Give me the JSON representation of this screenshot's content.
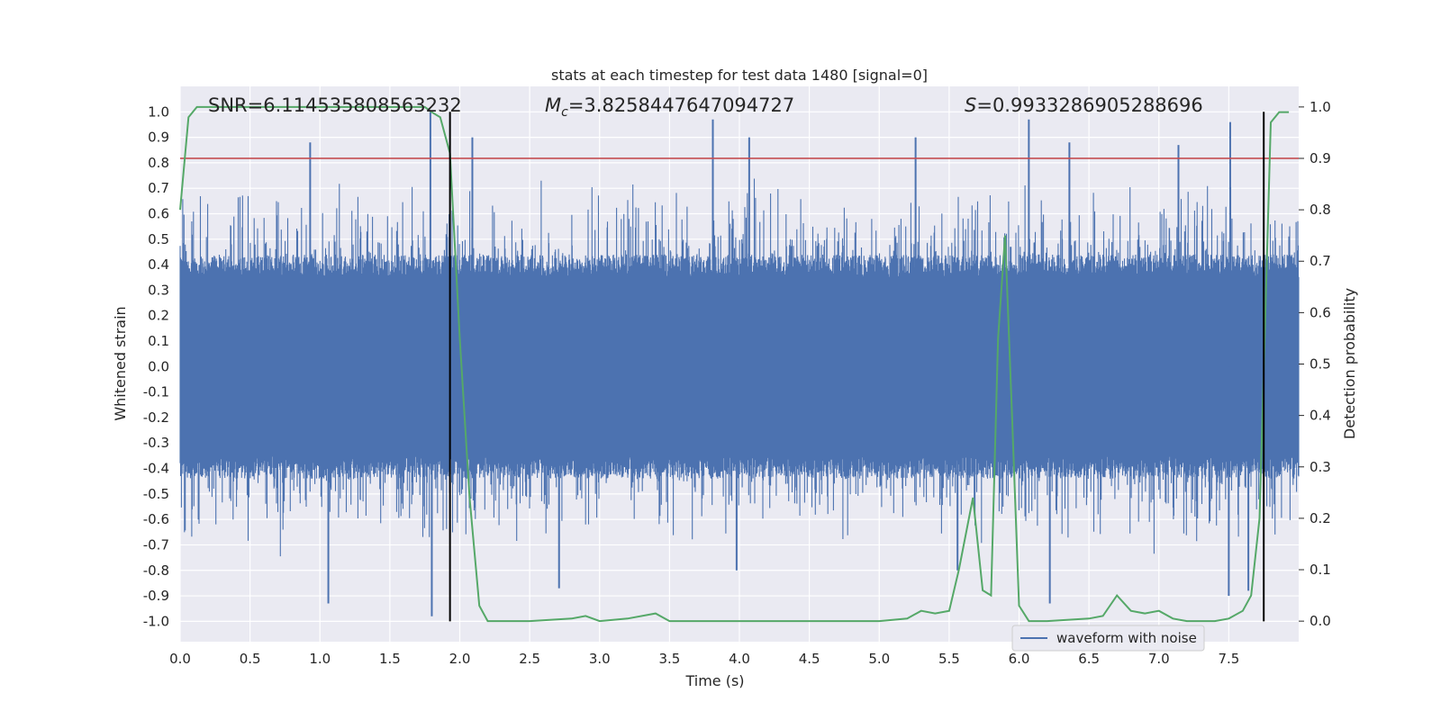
{
  "chart_data": {
    "type": "line",
    "title": "stats at each timestep for test data 1480 [signal=0]",
    "xlabel": "Time (s)",
    "ylabel_left": "Whitened strain",
    "ylabel_right": "Detection probability",
    "xlim": [
      0,
      8
    ],
    "ylim_left": [
      -1.08,
      1.1
    ],
    "ylim_right": [
      -0.04,
      1.04
    ],
    "x_ticks": [
      "0.0",
      "0.5",
      "1.0",
      "1.5",
      "2.0",
      "2.5",
      "3.0",
      "3.5",
      "4.0",
      "4.5",
      "5.0",
      "5.5",
      "6.0",
      "6.5",
      "7.0",
      "7.5"
    ],
    "y_ticks_left": [
      "-1.0",
      "-0.9",
      "-0.8",
      "-0.7",
      "-0.6",
      "-0.5",
      "-0.4",
      "-0.3",
      "-0.2",
      "-0.1",
      "0.0",
      "0.1",
      "0.2",
      "0.3",
      "0.4",
      "0.5",
      "0.6",
      "0.7",
      "0.8",
      "0.9",
      "1.0"
    ],
    "y_ticks_right": [
      "0.0",
      "0.1",
      "0.2",
      "0.3",
      "0.4",
      "0.5",
      "0.6",
      "0.7",
      "0.8",
      "0.9",
      "1.0"
    ],
    "grid": true,
    "background": "#eaeaf2",
    "colors": {
      "waveform": "#4c72b0",
      "probability": "#55a868",
      "threshold": "#c44e52",
      "marker": "#000000"
    },
    "annotations": {
      "snr": "SNR=6.114535808563232",
      "mc_symbol": "M",
      "mc_sub": "c",
      "mc_value": "=3.8258447647094727",
      "s_symbol": "S",
      "s_value": "=0.9933286905288696"
    },
    "legend": {
      "label": "waveform with noise",
      "placement": "lower-right"
    },
    "threshold_line": {
      "axis": "right",
      "value": 0.9
    },
    "vertical_markers": [
      1.93,
      7.75
    ],
    "waveform_envelope": {
      "name": "waveform with noise",
      "amplitude_core": 0.4,
      "upper_extremes": [
        [
          0.93,
          0.88
        ],
        [
          1.79,
          1.0
        ],
        [
          2.09,
          0.9
        ],
        [
          3.81,
          0.97
        ],
        [
          4.07,
          0.9
        ],
        [
          5.26,
          0.9
        ],
        [
          5.94,
          0.47
        ],
        [
          6.07,
          0.97
        ],
        [
          6.36,
          0.88
        ],
        [
          7.14,
          0.87
        ],
        [
          7.51,
          0.96
        ]
      ],
      "lower_extremes": [
        [
          1.8,
          -0.98
        ],
        [
          1.06,
          -0.93
        ],
        [
          2.71,
          -0.87
        ],
        [
          3.98,
          -0.8
        ],
        [
          5.56,
          -0.8
        ],
        [
          6.22,
          -0.93
        ],
        [
          7.5,
          -0.9
        ],
        [
          7.64,
          -0.88
        ]
      ]
    },
    "series": [
      {
        "name": "detection_probability",
        "axis": "right",
        "x": [
          0.0,
          0.06,
          0.12,
          0.2,
          0.3,
          0.5,
          0.8,
          1.0,
          1.3,
          1.5,
          1.6,
          1.7,
          1.75,
          1.8,
          1.86,
          1.93,
          2.0,
          2.07,
          2.14,
          2.2,
          2.3,
          2.5,
          2.8,
          2.9,
          3.0,
          3.2,
          3.4,
          3.5,
          3.6,
          4.0,
          4.2,
          4.5,
          5.0,
          5.2,
          5.3,
          5.4,
          5.5,
          5.57,
          5.67,
          5.74,
          5.8,
          5.85,
          5.9,
          5.95,
          6.0,
          6.07,
          6.2,
          6.5,
          6.6,
          6.7,
          6.8,
          6.9,
          7.0,
          7.1,
          7.2,
          7.4,
          7.5,
          7.6,
          7.66,
          7.72,
          7.8,
          7.86,
          7.93
        ],
        "y": [
          0.8,
          0.98,
          1.0,
          1.0,
          1.0,
          1.0,
          1.0,
          1.0,
          1.0,
          1.0,
          1.0,
          1.0,
          1.0,
          0.99,
          0.98,
          0.91,
          0.55,
          0.24,
          0.03,
          0.0,
          0.0,
          0.0,
          0.005,
          0.01,
          0.0,
          0.005,
          0.015,
          0.0,
          0.0,
          0.0,
          0.0,
          0.0,
          0.0,
          0.005,
          0.02,
          0.015,
          0.02,
          0.1,
          0.24,
          0.06,
          0.05,
          0.55,
          0.75,
          0.4,
          0.03,
          0.0,
          0.0,
          0.005,
          0.01,
          0.05,
          0.02,
          0.015,
          0.02,
          0.005,
          0.0,
          0.0,
          0.005,
          0.02,
          0.05,
          0.2,
          0.97,
          0.99,
          0.99
        ]
      }
    ]
  }
}
